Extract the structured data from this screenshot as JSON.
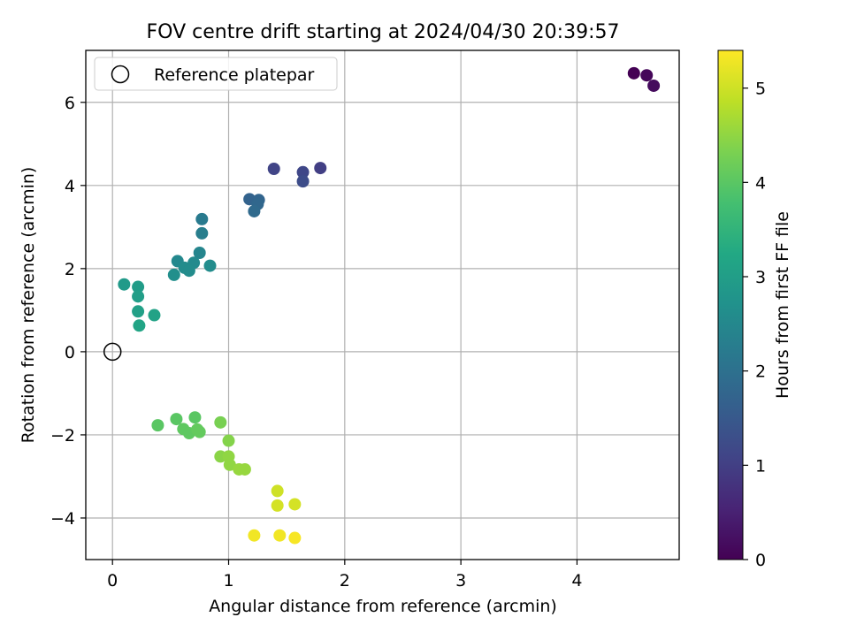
{
  "chart_data": {
    "type": "scatter",
    "title": "FOV centre drift starting at 2024/04/30 20:39:57",
    "xlabel": "Angular distance from reference (arcmin)",
    "ylabel": "Rotation from reference (arcmin)",
    "xlim": [
      -0.23,
      4.88
    ],
    "ylim": [
      -5.0,
      7.25
    ],
    "xticks": [
      0,
      1,
      2,
      3,
      4
    ],
    "yticks": [
      -4,
      -2,
      0,
      2,
      4,
      6
    ],
    "grid": true,
    "legend": {
      "position": "top-left",
      "entries": [
        "Reference platepar"
      ]
    },
    "reference_point": {
      "x": 0,
      "y": 0
    },
    "colorbar": {
      "label": "Hours from first FF file",
      "colormap": "viridis",
      "range": [
        0,
        5.4
      ],
      "ticks": [
        0,
        1,
        2,
        3,
        4,
        5
      ]
    },
    "points": [
      {
        "x": 4.49,
        "y": 6.7,
        "h": 0.0
      },
      {
        "x": 4.6,
        "y": 6.65,
        "h": 0.08
      },
      {
        "x": 4.66,
        "y": 6.4,
        "h": 0.15
      },
      {
        "x": 1.79,
        "y": 4.42,
        "h": 1.0
      },
      {
        "x": 1.39,
        "y": 4.4,
        "h": 1.1
      },
      {
        "x": 1.64,
        "y": 4.32,
        "h": 1.15
      },
      {
        "x": 1.64,
        "y": 4.1,
        "h": 1.25
      },
      {
        "x": 1.18,
        "y": 3.67,
        "h": 1.7
      },
      {
        "x": 1.26,
        "y": 3.65,
        "h": 1.75
      },
      {
        "x": 1.25,
        "y": 3.55,
        "h": 1.8
      },
      {
        "x": 1.22,
        "y": 3.38,
        "h": 1.85
      },
      {
        "x": 0.77,
        "y": 3.19,
        "h": 2.2
      },
      {
        "x": 0.77,
        "y": 2.85,
        "h": 2.3
      },
      {
        "x": 0.75,
        "y": 2.38,
        "h": 2.45
      },
      {
        "x": 0.56,
        "y": 2.18,
        "h": 2.5
      },
      {
        "x": 0.7,
        "y": 2.14,
        "h": 2.55
      },
      {
        "x": 0.62,
        "y": 2.02,
        "h": 2.6
      },
      {
        "x": 0.66,
        "y": 1.95,
        "h": 2.6
      },
      {
        "x": 0.84,
        "y": 2.07,
        "h": 2.6
      },
      {
        "x": 0.53,
        "y": 1.85,
        "h": 2.65
      },
      {
        "x": 0.1,
        "y": 1.62,
        "h": 2.9
      },
      {
        "x": 0.22,
        "y": 1.56,
        "h": 2.95
      },
      {
        "x": 0.22,
        "y": 1.33,
        "h": 3.0
      },
      {
        "x": 0.22,
        "y": 0.97,
        "h": 3.05
      },
      {
        "x": 0.36,
        "y": 0.88,
        "h": 3.1
      },
      {
        "x": 0.23,
        "y": 0.63,
        "h": 3.15
      },
      {
        "x": 0.55,
        "y": -1.62,
        "h": 4.0
      },
      {
        "x": 0.71,
        "y": -1.58,
        "h": 4.0
      },
      {
        "x": 0.39,
        "y": -1.77,
        "h": 4.0
      },
      {
        "x": 0.61,
        "y": -1.86,
        "h": 4.05
      },
      {
        "x": 0.66,
        "y": -1.96,
        "h": 4.05
      },
      {
        "x": 0.75,
        "y": -1.93,
        "h": 4.1
      },
      {
        "x": 0.73,
        "y": -1.87,
        "h": 4.1
      },
      {
        "x": 0.93,
        "y": -1.7,
        "h": 4.3
      },
      {
        "x": 1.0,
        "y": -2.14,
        "h": 4.4
      },
      {
        "x": 0.93,
        "y": -2.52,
        "h": 4.45
      },
      {
        "x": 1.0,
        "y": -2.52,
        "h": 4.5
      },
      {
        "x": 1.01,
        "y": -2.72,
        "h": 4.5
      },
      {
        "x": 1.09,
        "y": -2.83,
        "h": 4.55
      },
      {
        "x": 1.14,
        "y": -2.83,
        "h": 4.55
      },
      {
        "x": 1.42,
        "y": -3.35,
        "h": 5.0
      },
      {
        "x": 1.42,
        "y": -3.7,
        "h": 5.05
      },
      {
        "x": 1.57,
        "y": -3.67,
        "h": 5.05
      },
      {
        "x": 1.22,
        "y": -4.42,
        "h": 5.3
      },
      {
        "x": 1.44,
        "y": -4.42,
        "h": 5.3
      },
      {
        "x": 1.57,
        "y": -4.48,
        "h": 5.35
      }
    ]
  }
}
